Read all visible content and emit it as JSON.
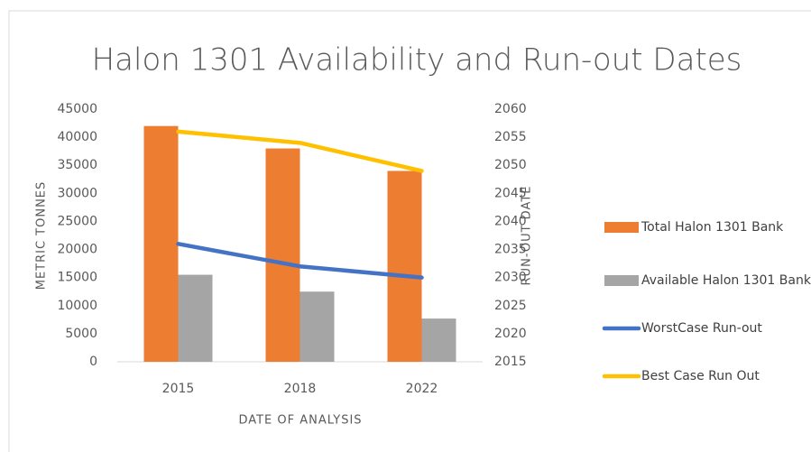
{
  "chart_data": {
    "type": "bar-line",
    "title": "Halon 1301 Availability and Run-out  Dates",
    "x_label": "DATE OF ANALYSIS",
    "y_label": "METRIC TONNES",
    "y2_label": "RUN-OUT DATE",
    "categories": [
      "2015",
      "2018",
      "2022"
    ],
    "series": [
      {
        "name": "Total Halon 1301 Bank",
        "type": "bar",
        "color": "#ed7d31",
        "values": [
          42000,
          38000,
          34000
        ]
      },
      {
        "name": "Available Halon 1301 Bank",
        "type": "bar",
        "color": "#a5a5a5",
        "values": [
          15500,
          12500,
          7700
        ]
      },
      {
        "name": "WorstCase Run-out",
        "type": "line",
        "axis": "y2",
        "color": "#4472c4",
        "values": [
          2036,
          2032,
          2030
        ]
      },
      {
        "name": "Best Case Run Out",
        "type": "line",
        "axis": "y2",
        "color": "#ffc000",
        "values": [
          2056,
          2054,
          2049
        ]
      }
    ],
    "ylim": [
      0,
      45000
    ],
    "yticks": [
      0,
      5000,
      10000,
      15000,
      20000,
      25000,
      30000,
      35000,
      40000,
      45000
    ],
    "y2lim": [
      2015,
      2060
    ],
    "y2ticks": [
      2015,
      2020,
      2025,
      2030,
      2035,
      2040,
      2045,
      2050,
      2055,
      2060
    ],
    "legend": "right"
  }
}
